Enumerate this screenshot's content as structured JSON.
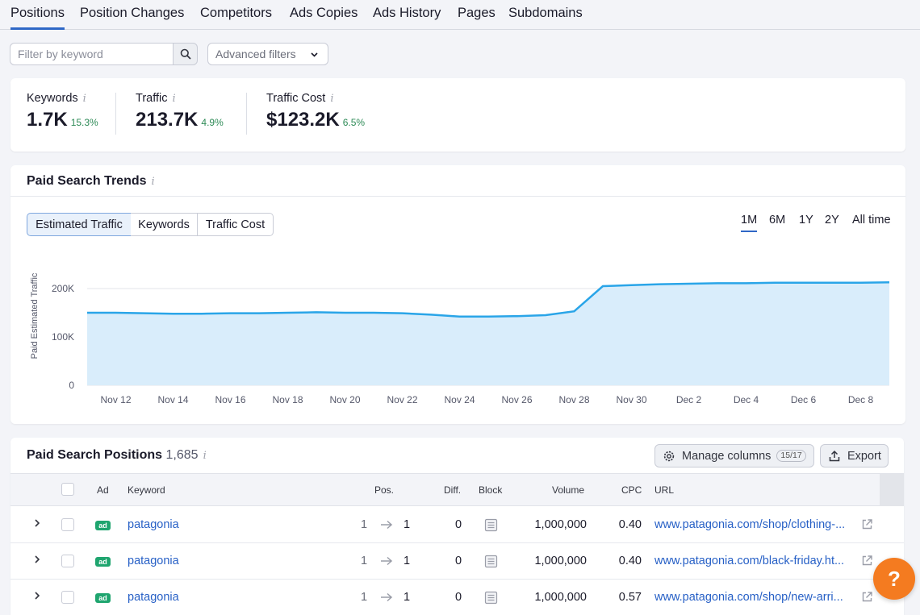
{
  "tabs": [
    "Positions",
    "Position Changes",
    "Competitors",
    "Ads Copies",
    "Ads History",
    "Pages",
    "Subdomains"
  ],
  "filter": {
    "placeholder": "Filter by keyword",
    "advanced_label": "Advanced filters"
  },
  "metrics": [
    {
      "label": "Keywords",
      "value": "1.7K",
      "change": "15.3%"
    },
    {
      "label": "Traffic",
      "value": "213.7K",
      "change": "4.9%"
    },
    {
      "label": "Traffic Cost",
      "value": "$123.2K",
      "change": "6.5%"
    }
  ],
  "trends": {
    "title": "Paid Search Trends",
    "segments": [
      "Estimated Traffic",
      "Keywords",
      "Traffic Cost"
    ],
    "periods": [
      "1M",
      "6M",
      "1Y",
      "2Y",
      "All time"
    ]
  },
  "chart_data": {
    "type": "area",
    "title": "",
    "xlabel": "",
    "ylabel": "Paid Estimated Traffic",
    "ylim": [
      0,
      200000
    ],
    "yticks": [
      "0",
      "100K",
      "200K"
    ],
    "xtick_labels": [
      "Nov 12",
      "Nov 14",
      "Nov 16",
      "Nov 18",
      "Nov 20",
      "Nov 22",
      "Nov 24",
      "Nov 26",
      "Nov 28",
      "Nov 30",
      "Dec 2",
      "Dec 4",
      "Dec 6",
      "Dec 8"
    ],
    "categories": [
      "Nov 11",
      "Nov 12",
      "Nov 13",
      "Nov 14",
      "Nov 15",
      "Nov 16",
      "Nov 17",
      "Nov 18",
      "Nov 19",
      "Nov 20",
      "Nov 21",
      "Nov 22",
      "Nov 23",
      "Nov 24",
      "Nov 25",
      "Nov 26",
      "Nov 27",
      "Nov 28",
      "Nov 29",
      "Nov 30",
      "Dec 1",
      "Dec 2",
      "Dec 3",
      "Dec 4",
      "Dec 5",
      "Dec 6",
      "Dec 7",
      "Dec 8",
      "Dec 9"
    ],
    "series": [
      {
        "name": "Estimated Traffic",
        "values": [
          150000,
          150000,
          149000,
          148000,
          148000,
          149000,
          149000,
          150000,
          151000,
          150000,
          150000,
          149000,
          146000,
          142000,
          142000,
          143000,
          145000,
          153000,
          205000,
          207000,
          209000,
          210000,
          211000,
          211000,
          212000,
          212000,
          212000,
          212000,
          213000
        ]
      }
    ]
  },
  "positions": {
    "title": "Paid Search Positions",
    "count": "1,685",
    "manage_label": "Manage columns",
    "manage_badge": "15/17",
    "export_label": "Export",
    "columns": [
      "Ad",
      "Keyword",
      "Pos.",
      "Diff.",
      "Block",
      "Volume",
      "CPC",
      "URL"
    ],
    "rows": [
      {
        "ad": "ad",
        "keyword": "patagonia",
        "pos_from": "1",
        "pos_to": "1",
        "diff": "0",
        "volume": "1,000,000",
        "cpc": "0.40",
        "url": "www.patagonia.com/shop/clothing-..."
      },
      {
        "ad": "ad",
        "keyword": "patagonia",
        "pos_from": "1",
        "pos_to": "1",
        "diff": "0",
        "volume": "1,000,000",
        "cpc": "0.40",
        "url": "www.patagonia.com/black-friday.ht..."
      },
      {
        "ad": "ad",
        "keyword": "patagonia",
        "pos_from": "1",
        "pos_to": "1",
        "diff": "0",
        "volume": "1,000,000",
        "cpc": "0.57",
        "url": "www.patagonia.com/shop/new-arri..."
      }
    ]
  },
  "help_label": "?"
}
